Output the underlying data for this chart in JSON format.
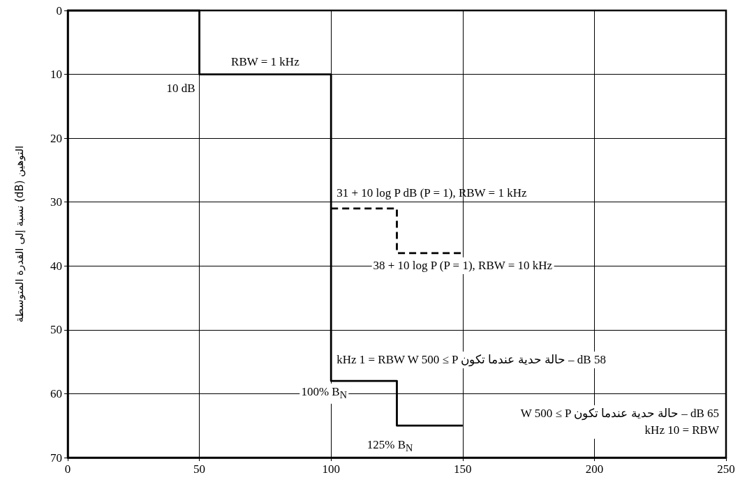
{
  "chart_data": {
    "type": "step",
    "ylabel": "التوهين (dB) نسبة إلى القدرة المتوسطة",
    "series": [
      {
        "x": [
          0,
          50,
          100,
          125,
          150
        ],
        "values": [
          0,
          10,
          58,
          65,
          65
        ],
        "color": "#000000",
        "line_style": "solid"
      },
      {
        "x": [
          100,
          125,
          150
        ],
        "values": [
          31,
          38,
          38
        ],
        "color": "#000000",
        "line_style": "dashed"
      }
    ],
    "xlim": [
      0,
      250
    ],
    "xticks": [
      0,
      50,
      100,
      150,
      200,
      250
    ],
    "ylim": [
      70,
      0
    ],
    "yticks": [
      0,
      10,
      20,
      30,
      40,
      50,
      60,
      70
    ],
    "grid": true,
    "marker": "none",
    "annotations": [
      {
        "text": "RBW = 1 kHz",
        "x": 75,
        "y": 10
      },
      {
        "text": "10 dB",
        "x": 50,
        "y": 10
      },
      {
        "text": "31 + 10 log P dB (P = 1), RBW = 1 kHz",
        "x": 100,
        "y": 31
      },
      "38 + 10 log P (P = 1), RBW = 10 kHz",
      {
        "text": "kHz 1 = RBW W 500 ≤ P حالة حدية عندما تكون – dB 58",
        "x": 100,
        "y": 58
      },
      "W 500 ≤ P حالة حدية عندما تكون – dB 65\nkHz 10 = RBW",
      "100% B$_{N}$",
      {
        "text": "125% B$_{N}$",
        "x": 125,
        "y": 65
      }
    ]
  }
}
